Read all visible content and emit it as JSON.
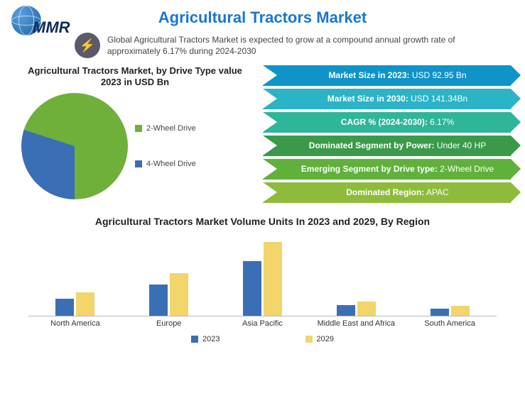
{
  "logo_text": "MMR",
  "title": "Agricultural Tractors Market",
  "intro": "Global Agricultural Tractors Market is expected to grow at a compound annual growth rate of approximately 6.17% during 2024-2030",
  "pie": {
    "title": "Agricultural Tractors Market, by Drive Type  value 2023 in USD Bn",
    "slices": [
      {
        "label": "2-Wheel Drive",
        "value": 70,
        "color": "#6fb03a"
      },
      {
        "label": "4-Wheel Drive",
        "value": 30,
        "color": "#3b6fb5"
      }
    ],
    "legend_colors": {
      "2wheel": "#6fb03a",
      "4wheel": "#3b6fb5"
    }
  },
  "banners": [
    {
      "label": "Market Size in 2023:",
      "value": " USD 92.95 Bn",
      "bg": "#0f93c9",
      "arrow": "#0f93c9"
    },
    {
      "label": "Market Size in 2030:",
      "value": " USD 141.34Bn",
      "bg": "#2bb3c7",
      "arrow": "#2bb3c7"
    },
    {
      "label": "CAGR % (2024-2030):",
      "value": " 6.17%",
      "bg": "#2fb59a",
      "arrow": "#2fb59a"
    },
    {
      "label": "Dominated Segment by Power:",
      "value": " Under 40 HP",
      "bg": "#3a9a4a",
      "arrow": "#3a9a4a"
    },
    {
      "label": "Emerging Segment by Drive type:",
      "value": " 2-Wheel Drive",
      "bg": "#5fb13a",
      "arrow": "#5fb13a"
    },
    {
      "label": "Dominated Region:",
      "value": " APAC",
      "bg": "#8fbb3c",
      "arrow": "#8fbb3c"
    }
  ],
  "bar_chart": {
    "title": "Agricultural Tractors Market Volume Units In 2023 and 2029, By Region",
    "max": 100,
    "series_colors": {
      "2023": "#3b6fb5",
      "2029": "#f2d56b"
    },
    "series_labels": {
      "2023": "2023",
      "2029": "2029"
    },
    "regions": [
      {
        "name": "North America",
        "y2023": 22,
        "y2029": 30
      },
      {
        "name": "Europe",
        "y2023": 40,
        "y2029": 55
      },
      {
        "name": "Asia Pacific",
        "y2023": 70,
        "y2029": 95
      },
      {
        "name": "Middle East and Africa",
        "y2023": 14,
        "y2029": 18
      },
      {
        "name": "South America",
        "y2023": 9,
        "y2029": 13
      }
    ]
  }
}
